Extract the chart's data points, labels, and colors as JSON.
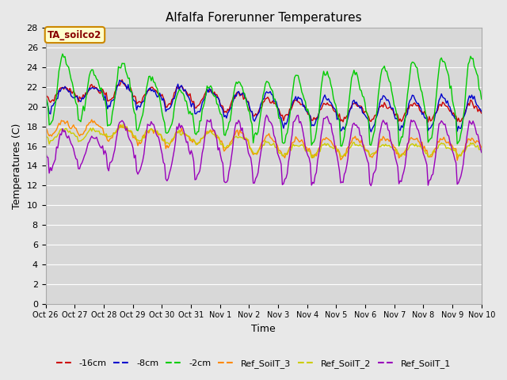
{
  "title": "Alfalfa Forerunner Temperatures",
  "xlabel": "Time",
  "ylabel": "Temperatures (C)",
  "annotation_text": "TA_soilco2",
  "annotation_bg": "#ffffcc",
  "annotation_border": "#cc8800",
  "annotation_text_color": "#880000",
  "fig_bg_color": "#e8e8e8",
  "plot_bg_color": "#d8d8d8",
  "ylim": [
    0,
    28
  ],
  "yticks": [
    0,
    2,
    4,
    6,
    8,
    10,
    12,
    14,
    16,
    18,
    20,
    22,
    24,
    26,
    28
  ],
  "series": [
    {
      "label": "-16cm",
      "color": "#cc0000"
    },
    {
      "label": "-8cm",
      "color": "#0000cc"
    },
    {
      "label": "-2cm",
      "color": "#00cc00"
    },
    {
      "label": "Ref_SoilT_3",
      "color": "#ff8800"
    },
    {
      "label": "Ref_SoilT_2",
      "color": "#cccc00"
    },
    {
      "label": "Ref_SoilT_1",
      "color": "#9900bb"
    }
  ],
  "tick_labels": [
    "Oct 26",
    "Oct 27",
    "Oct 28",
    "Oct 29",
    "Oct 30",
    "Oct 31",
    "Nov 1",
    "Nov 2",
    "Nov 3",
    "Nov 4",
    "Nov 5",
    "Nov 6",
    "Nov 7",
    "Nov 8",
    "Nov 9",
    "Nov 10"
  ],
  "figsize": [
    6.4,
    4.8
  ],
  "dpi": 100
}
